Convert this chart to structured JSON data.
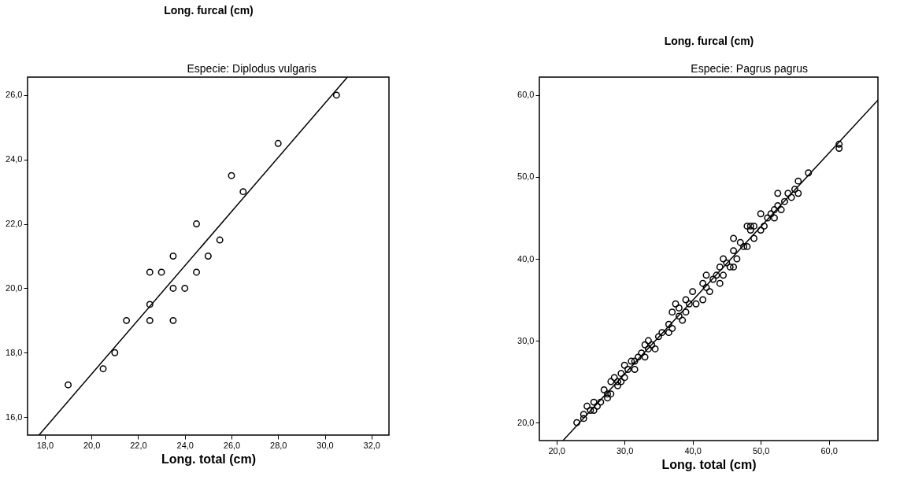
{
  "chart_data": [
    {
      "type": "scatter",
      "ylabel": "Long. furcal (cm)",
      "subtitle": "Especie: Diplodus vulgaris",
      "xlabel": "Long. total (cm)",
      "grid": false,
      "xlim": [
        17.26,
        32.75
      ],
      "ylim": [
        15.44,
        26.56
      ],
      "xticks": [
        {
          "value": 18,
          "label": "18,0"
        },
        {
          "value": 20,
          "label": "20,0"
        },
        {
          "value": 22,
          "label": "22,0"
        },
        {
          "value": 24,
          "label": "24,0"
        },
        {
          "value": 26,
          "label": "26,0"
        },
        {
          "value": 28,
          "label": "28,0"
        },
        {
          "value": 30,
          "label": "30,0"
        },
        {
          "value": 32,
          "label": "32,0"
        }
      ],
      "yticks": [
        {
          "value": 16,
          "label": "16,0"
        },
        {
          "value": 18,
          "label": "18,0"
        },
        {
          "value": 20,
          "label": "20,0"
        },
        {
          "value": 22,
          "label": "22,0"
        },
        {
          "value": 24,
          "label": "24,0"
        },
        {
          "value": 26,
          "label": "26,0"
        }
      ],
      "series": [
        {
          "type": "scatter",
          "color": "#000000",
          "marker": "circle",
          "x": [
            19,
            20.5,
            21,
            21.5,
            22.5,
            22.5,
            22.5,
            23,
            23.5,
            23.5,
            23.5,
            24,
            24.5,
            24.5,
            25,
            25.5,
            26,
            26.5,
            28,
            30.5
          ],
          "values": [
            17,
            17.5,
            18,
            19,
            19,
            19.5,
            20.5,
            20.5,
            21,
            20,
            19,
            20,
            22,
            20.5,
            21,
            21.5,
            23.5,
            23,
            24.5,
            26
          ]
        },
        {
          "type": "line",
          "color": "#000000",
          "marker": "none",
          "line_style": "solid",
          "x": [
            17.75,
            30.97
          ],
          "values": [
            15.44,
            26.56
          ]
        }
      ]
    },
    {
      "type": "scatter",
      "ylabel": "Long. furcal (cm)",
      "subtitle": "Especie: Pagrus pagrus",
      "xlabel": "Long. total (cm)",
      "grid": false,
      "xlim": [
        17.5,
        67.2
      ],
      "ylim": [
        17.8,
        62.2
      ],
      "xticks": [
        {
          "value": 20,
          "label": "20,0"
        },
        {
          "value": 30,
          "label": "30,0"
        },
        {
          "value": 40,
          "label": "40,0"
        },
        {
          "value": 50,
          "label": "50,0"
        },
        {
          "value": 60,
          "label": "60,0"
        }
      ],
      "yticks": [
        {
          "value": 20,
          "label": "20,0"
        },
        {
          "value": 30,
          "label": "30,0"
        },
        {
          "value": 40,
          "label": "40,0"
        },
        {
          "value": 50,
          "label": "50,0"
        },
        {
          "value": 60,
          "label": "60,0"
        }
      ],
      "series": [
        {
          "type": "scatter",
          "color": "#000000",
          "marker": "circle",
          "x": [
            23,
            24,
            24,
            24.5,
            25,
            25.5,
            25.5,
            26,
            26.5,
            27,
            27.5,
            27.5,
            28,
            28,
            28.5,
            29,
            29,
            29.5,
            29.5,
            30,
            30,
            30.5,
            31,
            31.5,
            31.5,
            32,
            32.5,
            33,
            33,
            33.5,
            33.5,
            34,
            34.5,
            35,
            35.5,
            36.5,
            36.5,
            37,
            37,
            37.5,
            38,
            38,
            38.5,
            39,
            39,
            39.5,
            40,
            40.5,
            41.5,
            41.5,
            42,
            42,
            42.5,
            43,
            43.5,
            44,
            44,
            44.5,
            44.5,
            45,
            45.5,
            46,
            46,
            46,
            46.5,
            47,
            47.5,
            48,
            48,
            48.5,
            48.5,
            49,
            49,
            50,
            50,
            50.5,
            51,
            51.5,
            52,
            52,
            52.5,
            52.5,
            53,
            53.5,
            54,
            54.5,
            55,
            55.5,
            55.5,
            57,
            61.5,
            61.5
          ],
          "values": [
            20,
            20.5,
            21,
            22,
            21.5,
            21.5,
            22.5,
            22,
            22.5,
            24,
            23,
            23.5,
            25,
            23.5,
            25.5,
            24.5,
            25,
            26,
            25,
            27,
            25.5,
            26.5,
            27.5,
            26.5,
            27.5,
            28,
            28.5,
            29.5,
            28,
            30,
            29,
            29.5,
            29,
            30.5,
            31,
            31,
            32,
            31.5,
            33.5,
            34.5,
            34,
            33,
            32.5,
            35,
            33.5,
            34.5,
            36,
            34.5,
            37,
            35,
            38,
            36.5,
            36,
            37.5,
            38,
            37,
            39,
            40,
            38,
            39.5,
            39,
            42.5,
            41,
            39,
            40,
            42,
            41.5,
            44,
            41.5,
            44,
            43.5,
            42.5,
            44,
            45.5,
            43.5,
            44,
            45,
            45.5,
            45,
            46,
            48,
            46.5,
            46,
            47,
            48,
            47.5,
            48.5,
            49.5,
            48,
            50.5,
            54,
            53.5
          ]
        },
        {
          "type": "line",
          "color": "#000000",
          "marker": "none",
          "line_style": "solid",
          "x": [
            20.97,
            67.2
          ],
          "values": [
            17.8,
            59.4
          ]
        }
      ]
    }
  ]
}
